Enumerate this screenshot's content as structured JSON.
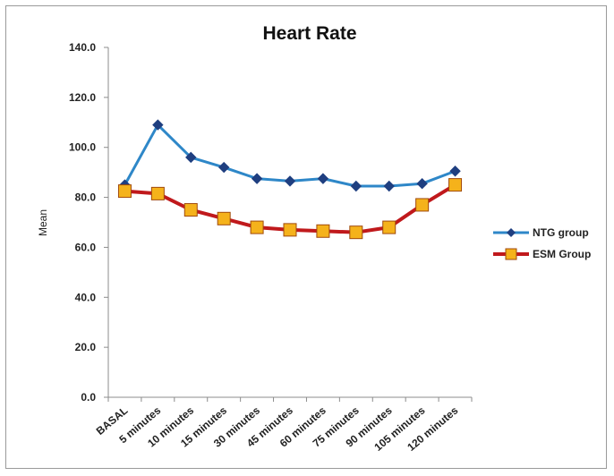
{
  "chart_data": {
    "type": "line",
    "title": "Heart Rate",
    "ylabel": "Mean",
    "xlabel": "",
    "categories": [
      "BASAL",
      "5 minutes",
      "10 minutes",
      "15 minutes",
      "30 minutes",
      "45 minutes",
      "60 minutes",
      "75 minutes",
      "90 minutes",
      "105 minutes",
      "120 minutes"
    ],
    "ylim": [
      0,
      140
    ],
    "ytick_values": [
      0,
      20,
      40,
      60,
      80,
      100,
      120,
      140
    ],
    "ytick_labels": [
      "0.0",
      "20.0",
      "40.0",
      "60.0",
      "80.0",
      "100.0",
      "120.0",
      "140.0"
    ],
    "grid": false,
    "legend_position": "right",
    "series": [
      {
        "name": "NTG group",
        "color": "#2e87c8",
        "marker": "diamond",
        "marker_color": "#1f3f80",
        "values": [
          85.0,
          109.0,
          96.0,
          92.0,
          87.5,
          86.5,
          87.5,
          84.5,
          84.5,
          85.5,
          90.5
        ]
      },
      {
        "name": "ESM Group",
        "color": "#c0191c",
        "marker": "square",
        "marker_color": "#f5b21b",
        "values": [
          82.5,
          81.5,
          75.0,
          71.5,
          68.0,
          67.0,
          66.5,
          66.0,
          68.0,
          77.0,
          85.0
        ]
      }
    ]
  }
}
